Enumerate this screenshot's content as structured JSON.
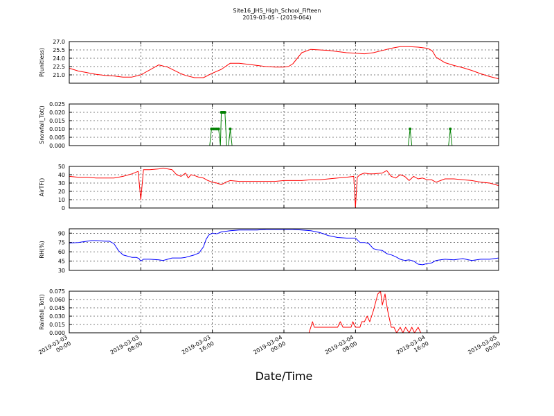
{
  "header": {
    "title": "Site16_JHS_High_School_Fifteen",
    "subtitle": "2019-03-05 - (2019-064)"
  },
  "xaxis_label": "Date/Time",
  "chart_data": [
    {
      "type": "line",
      "ylabel": "P(unitless)",
      "ylim": [
        19.5,
        27.0
      ],
      "yticks": [
        "21.0",
        "22.5",
        "24.0",
        "25.5",
        "27.0"
      ],
      "ytick_values": [
        21.0,
        22.5,
        24.0,
        25.5,
        27.0
      ],
      "grid": true,
      "series": [
        {
          "color": "#ff0000",
          "markers": false,
          "x": [
            0,
            1,
            2,
            3,
            4,
            5,
            6,
            7,
            8,
            9,
            10,
            11,
            12,
            12.5,
            13,
            14,
            15,
            16,
            17,
            18,
            19,
            20,
            21,
            22,
            23,
            24,
            24.5,
            25,
            26,
            27,
            28,
            29,
            30,
            31,
            32,
            33,
            34,
            35,
            36,
            37,
            38,
            39,
            40,
            40.3,
            40.6,
            41,
            42,
            43,
            44,
            45,
            46,
            47,
            48
          ],
          "y": [
            22.2,
            21.7,
            21.4,
            21.1,
            20.9,
            20.8,
            20.6,
            20.6,
            21.0,
            21.9,
            22.8,
            22.4,
            21.6,
            21.2,
            20.9,
            20.5,
            20.5,
            21.3,
            22.0,
            23.1,
            23.1,
            22.9,
            22.7,
            22.5,
            22.4,
            22.4,
            22.5,
            23.0,
            25.0,
            25.6,
            25.5,
            25.4,
            25.2,
            25.0,
            24.9,
            24.8,
            25.0,
            25.4,
            25.8,
            26.1,
            26.1,
            26.0,
            25.8,
            25.6,
            25.3,
            24.2,
            23.2,
            22.7,
            22.3,
            21.8,
            21.2,
            20.7,
            20.3
          ]
        }
      ]
    },
    {
      "type": "line",
      "ylabel": "Snowfall_Tot()",
      "ylim": [
        0.0,
        0.025
      ],
      "yticks": [
        "0.000",
        "0.005",
        "0.010",
        "0.015",
        "0.020",
        "0.025"
      ],
      "ytick_values": [
        0.0,
        0.005,
        0.01,
        0.015,
        0.02,
        0.025
      ],
      "grid": true,
      "series": [
        {
          "color": "#007f00",
          "markers": true,
          "x": [
            0,
            15.7,
            15.9,
            16.1,
            16.3,
            16.5,
            16.7,
            16.9,
            17.0,
            17.1,
            17.2,
            17.3,
            17.4,
            17.6,
            17.8,
            18.0,
            18.2,
            18.4,
            37.9,
            38.1,
            38.3,
            42.4,
            42.6,
            42.8,
            48
          ],
          "y": [
            0,
            0,
            0.01,
            0.01,
            0.01,
            0.01,
            0.01,
            0,
            0.02,
            0.02,
            0.02,
            0.02,
            0.02,
            0,
            0,
            0.01,
            0,
            0,
            0,
            0.01,
            0,
            0,
            0.01,
            0,
            0
          ]
        }
      ]
    },
    {
      "type": "line",
      "ylabel": "AirTF()",
      "ylim": [
        0,
        50
      ],
      "yticks": [
        "0",
        "10",
        "20",
        "30",
        "40",
        "50"
      ],
      "ytick_values": [
        0,
        10,
        20,
        30,
        40,
        50
      ],
      "grid": true,
      "series": [
        {
          "color": "#ff0000",
          "markers": false,
          "x": [
            0,
            1,
            2,
            3,
            4,
            5,
            6,
            7,
            7.7,
            8.0,
            8.3,
            9,
            10,
            10.5,
            11,
            11.5,
            12,
            12.5,
            13,
            13.3,
            13.6,
            14,
            14.5,
            15,
            15.5,
            16,
            16.5,
            17,
            17.5,
            18,
            19,
            20,
            21,
            22,
            23,
            24,
            25,
            26,
            27,
            28,
            29,
            30,
            31,
            31.8,
            32.0,
            32.2,
            32.5,
            33,
            33.5,
            34,
            35,
            35.5,
            36,
            36.5,
            37,
            37.5,
            38,
            38.5,
            39,
            39.5,
            40,
            40.5,
            41,
            42,
            43,
            44,
            45,
            46,
            47,
            48
          ],
          "y": [
            38,
            37,
            37,
            36,
            36,
            36,
            38,
            41,
            44,
            10,
            46,
            46,
            47,
            48,
            47,
            46,
            40,
            38,
            42,
            36,
            40,
            39,
            37,
            36,
            33,
            31,
            30,
            28,
            31,
            33,
            32,
            32,
            32,
            32,
            32,
            33,
            33,
            33,
            34,
            34,
            35,
            36,
            37,
            38,
            1,
            37,
            40,
            42,
            41,
            41,
            42,
            45,
            38,
            36,
            40,
            38,
            33,
            38,
            35,
            36,
            34,
            34,
            31,
            35,
            35,
            34,
            33,
            31,
            30,
            27
          ]
        }
      ]
    },
    {
      "type": "line",
      "ylabel": "RH(%)",
      "ylim": [
        30,
        97
      ],
      "yticks": [
        "30",
        "45",
        "60",
        "75",
        "90"
      ],
      "ytick_values": [
        30,
        45,
        60,
        75,
        90
      ],
      "grid": true,
      "series": [
        {
          "color": "#0000ff",
          "markers": false,
          "x": [
            0,
            1,
            2,
            2.5,
            3,
            4,
            4.5,
            5,
            5.5,
            6,
            6.5,
            7,
            7.5,
            7.8,
            8.0,
            8.3,
            9,
            10,
            10.5,
            11,
            11.5,
            12,
            12.5,
            13,
            13.5,
            14,
            14.5,
            15,
            15.3,
            15.6,
            16,
            16.5,
            17,
            18,
            19,
            20,
            21,
            22,
            23,
            24,
            25,
            26,
            27,
            28,
            29,
            30,
            31,
            31.5,
            32,
            32.5,
            33,
            33.5,
            34,
            34.5,
            35,
            35.5,
            36,
            36.5,
            37,
            37.5,
            38,
            38.5,
            39,
            39.5,
            40,
            40.5,
            41,
            41.5,
            42,
            43,
            44,
            45,
            46,
            47,
            48
          ],
          "y": [
            74,
            75,
            77,
            78,
            78,
            77,
            77,
            73,
            62,
            55,
            53,
            51,
            51,
            49,
            45,
            48,
            48,
            47,
            46,
            48,
            50,
            50,
            50,
            51,
            53,
            55,
            58,
            68,
            80,
            87,
            90,
            89,
            92,
            94,
            95,
            95,
            95,
            96,
            96,
            96,
            96,
            95,
            94,
            91,
            86,
            83,
            82,
            82,
            82,
            75,
            75,
            73,
            65,
            63,
            62,
            57,
            55,
            52,
            48,
            46,
            47,
            45,
            40,
            39,
            41,
            42,
            46,
            47,
            48,
            47,
            49,
            46,
            48,
            48,
            50
          ]
        }
      ]
    },
    {
      "type": "line",
      "ylabel": "Rainfall_Tot()",
      "ylim": [
        0.0,
        0.075
      ],
      "yticks": [
        "0.000",
        "0.015",
        "0.030",
        "0.045",
        "0.060",
        "0.075"
      ],
      "ytick_values": [
        0.0,
        0.015,
        0.03,
        0.045,
        0.06,
        0.075
      ],
      "grid": true,
      "series": [
        {
          "color": "#ff0000",
          "markers": false,
          "x": [
            0,
            26.8,
            27.0,
            27.2,
            27.4,
            27.6,
            29,
            30,
            30.3,
            30.6,
            31,
            31.5,
            31.7,
            32,
            32.5,
            32.7,
            33,
            33.3,
            33.6,
            34.0,
            34.5,
            34.8,
            35.0,
            35.3,
            35.6,
            36,
            36.3,
            36.6,
            37,
            37.3,
            37.6,
            38,
            38.3,
            38.6,
            39,
            39.3,
            39.6,
            48
          ],
          "y": [
            0,
            0,
            0.01,
            0.02,
            0.01,
            0.01,
            0.01,
            0.01,
            0.02,
            0.01,
            0.01,
            0.01,
            0.02,
            0.01,
            0.01,
            0.02,
            0.02,
            0.03,
            0.02,
            0.04,
            0.07,
            0.075,
            0.05,
            0.07,
            0.04,
            0.01,
            0.01,
            0,
            0.01,
            0,
            0.01,
            0,
            0.01,
            0,
            0.01,
            0,
            0,
            0
          ]
        }
      ]
    }
  ],
  "x_axis": {
    "range_hours": [
      0,
      48
    ],
    "ticks": [
      {
        "hours": 0,
        "line1": "2019-03-03",
        "line2": "00:00"
      },
      {
        "hours": 8,
        "line1": "2019-03-03",
        "line2": "08:00"
      },
      {
        "hours": 16,
        "line1": "2019-03-03",
        "line2": "16:00"
      },
      {
        "hours": 24,
        "line1": "2019-03-04",
        "line2": "00:00"
      },
      {
        "hours": 32,
        "line1": "2019-03-04",
        "line2": "08:00"
      },
      {
        "hours": 40,
        "line1": "2019-03-04",
        "line2": "16:00"
      },
      {
        "hours": 48,
        "line1": "2019-03-05",
        "line2": "00:00"
      }
    ]
  }
}
